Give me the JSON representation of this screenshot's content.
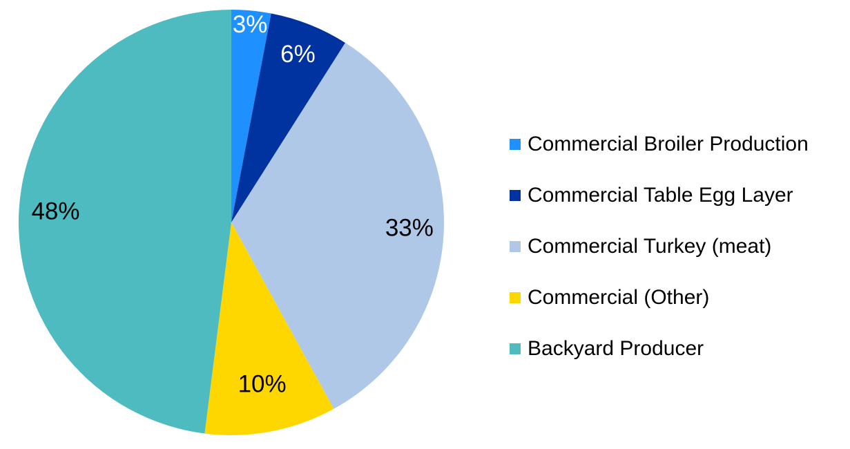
{
  "chart_data": {
    "type": "pie",
    "title": "",
    "legend_position": "right",
    "slices": [
      {
        "name": "Commercial Broiler Production",
        "value": 3,
        "label": "3%",
        "color": "#1E90FF",
        "label_color": "#FFFFFF"
      },
      {
        "name": "Commercial Table Egg Layer",
        "value": 6,
        "label": "6%",
        "color": "#0033A0",
        "label_color": "#FFFFFF"
      },
      {
        "name": "Commercial Turkey (meat)",
        "value": 33,
        "label": "33%",
        "color": "#B0C8E8",
        "label_color": "#000000"
      },
      {
        "name": "Commercial (Other)",
        "value": 10,
        "label": "10%",
        "color": "#FFD700",
        "label_color": "#000000"
      },
      {
        "name": "Backyard Producer",
        "value": 48,
        "label": "48%",
        "color": "#4DBBBF",
        "label_color": "#000000"
      }
    ]
  }
}
